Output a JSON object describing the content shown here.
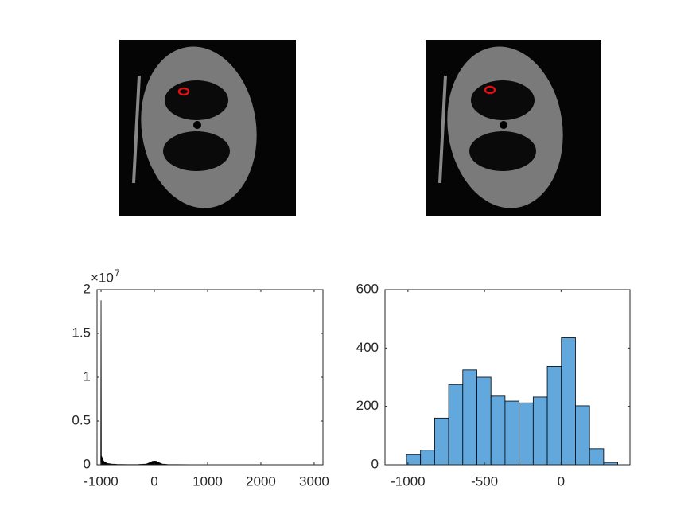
{
  "chart_data": [
    {
      "type": "area",
      "x": [
        -1024,
        -1005,
        -1000,
        -995,
        -985,
        -970,
        -950,
        -920,
        -880,
        -800,
        -700,
        -500,
        -300,
        -150,
        -80,
        -40,
        0,
        40,
        80,
        150,
        250,
        400,
        700,
        1000,
        2000,
        3000,
        3071
      ],
      "values": [
        0,
        0,
        18800000,
        1000000,
        900000,
        600000,
        400000,
        250000,
        150000,
        80000,
        40000,
        20000,
        30000,
        80000,
        250000,
        380000,
        420000,
        400000,
        250000,
        80000,
        30000,
        15000,
        8000,
        5000,
        3000,
        2000,
        0
      ],
      "color": "#000000",
      "xlim": [
        -1075,
        3165
      ],
      "xticks": [
        -1000,
        0,
        1000,
        2000,
        3000
      ],
      "ylim": [
        0,
        20000000
      ],
      "yticks": [
        0,
        {
          "value": 5000000,
          "label": "0.5"
        },
        {
          "value": 10000000,
          "label": "1"
        },
        {
          "value": 15000000,
          "label": "1.5"
        },
        {
          "value": 20000000,
          "label": "2"
        }
      ],
      "y_multiplier": {
        "base": "×10",
        "exponent": "7"
      }
    },
    {
      "type": "histogram",
      "bins": [
        -1010,
        -918,
        -826,
        -734,
        -642,
        -550,
        -458,
        -366,
        -274,
        -182,
        -90,
        2,
        94,
        186,
        278,
        370
      ],
      "values": [
        35,
        50,
        160,
        275,
        325,
        300,
        235,
        218,
        212,
        232,
        337,
        435,
        202,
        55,
        8
      ],
      "color": "#62a8dc",
      "xlim": [
        -1150,
        450
      ],
      "xticks": [
        -1000,
        -500,
        0
      ],
      "ylim": [
        0,
        600
      ],
      "yticks": [
        0,
        200,
        400,
        600
      ]
    }
  ]
}
